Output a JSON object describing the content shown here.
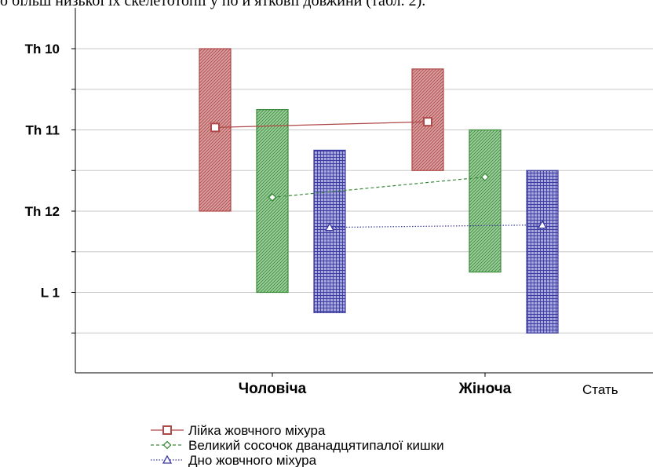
{
  "page_text": "о більш низької їх скелетотопії у по       й ятковії довжини (табл. 2).",
  "chart_data": {
    "type": "box",
    "title": "",
    "xlabel": "Стать",
    "ylabel": "",
    "categories": [
      "Чоловіча",
      "Жіноча"
    ],
    "y_ticks": [
      "Th 10",
      "Th 11",
      "Th 12",
      "L 1"
    ],
    "y_axis_note": "vertebral levels mapped to 10=Th 10, 11=Th 11, 12=Th 12, 13=L 1; axis increases downward",
    "ylim": [
      9.0,
      14.0
    ],
    "legend_position": "bottom-left",
    "grid": true,
    "series": [
      {
        "name": "Лійка жовчного міхура",
        "color": "#b04848",
        "fill": "#d8a0a0",
        "marker": "square",
        "line": "solid",
        "boxes": [
          {
            "category": "Чоловіча",
            "low": 10.0,
            "high": 12.0,
            "mean": 10.97
          },
          {
            "category": "Жіноча",
            "low": 10.25,
            "high": 11.5,
            "mean": 10.9
          }
        ]
      },
      {
        "name": "Великий сосочок дванадцятипалої кишки",
        "color": "#3a8a3a",
        "fill": "#9dcf9d",
        "marker": "diamond",
        "line": "dashed",
        "boxes": [
          {
            "category": "Чоловіча",
            "low": 10.75,
            "high": 13.0,
            "mean": 11.83
          },
          {
            "category": "Жіноча",
            "low": 11.0,
            "high": 12.75,
            "mean": 11.58
          }
        ]
      },
      {
        "name": "Дно жовчного міхура",
        "color": "#3a3aa0",
        "fill": "#a8a8dc",
        "marker": "triangle",
        "line": "dotted",
        "boxes": [
          {
            "category": "Чоловіча",
            "low": 11.25,
            "high": 13.25,
            "mean": 12.2
          },
          {
            "category": "Жіноча",
            "low": 11.5,
            "high": 13.5,
            "mean": 12.17
          }
        ]
      }
    ]
  }
}
